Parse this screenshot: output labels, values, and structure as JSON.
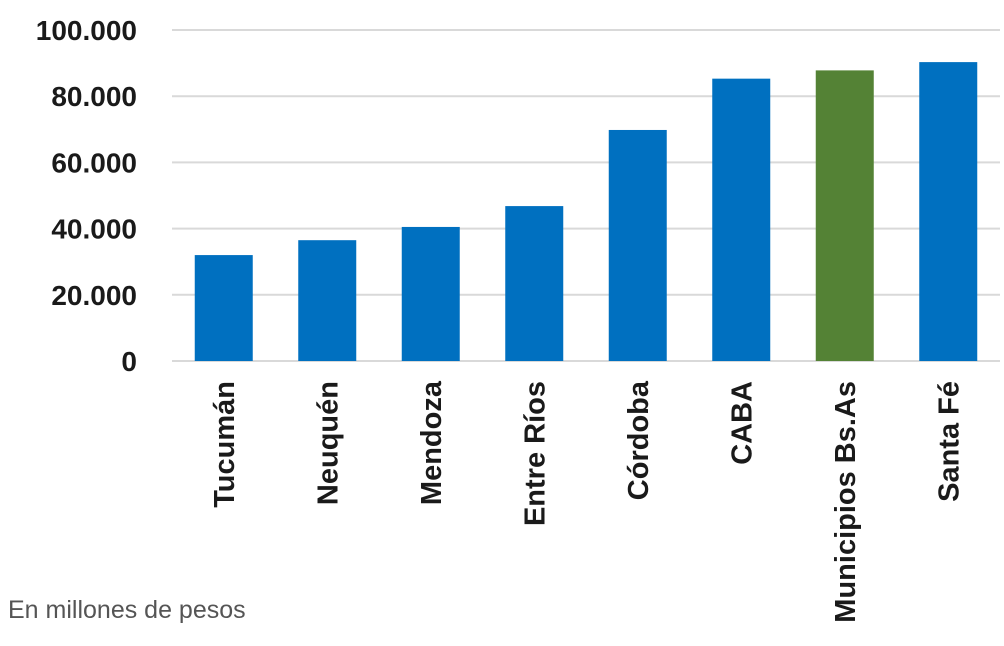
{
  "chart_data": {
    "type": "bar",
    "title": "",
    "categories": [
      "Tucumán",
      "Neuquén",
      "Mendoza",
      "Entre Ríos",
      "Córdoba",
      "CABA",
      "Municipios Bs.As",
      "Santa Fé"
    ],
    "values": [
      32000,
      36500,
      40500,
      46800,
      69800,
      85300,
      87800,
      90300
    ],
    "ylim": [
      0,
      100000
    ],
    "yticks": [
      0,
      20000,
      40000,
      60000,
      80000,
      100000
    ],
    "ytick_labels": [
      "0",
      "20.000",
      "40.000",
      "60.000",
      "80.000",
      "100.000"
    ],
    "xlabel": "",
    "ylabel": "",
    "grid": true,
    "colors": {
      "default": "#0070C0",
      "highlight": "#548235",
      "grid": "#d9d9d9"
    },
    "highlight_index": 6
  },
  "footnote": "En millones de pesos"
}
